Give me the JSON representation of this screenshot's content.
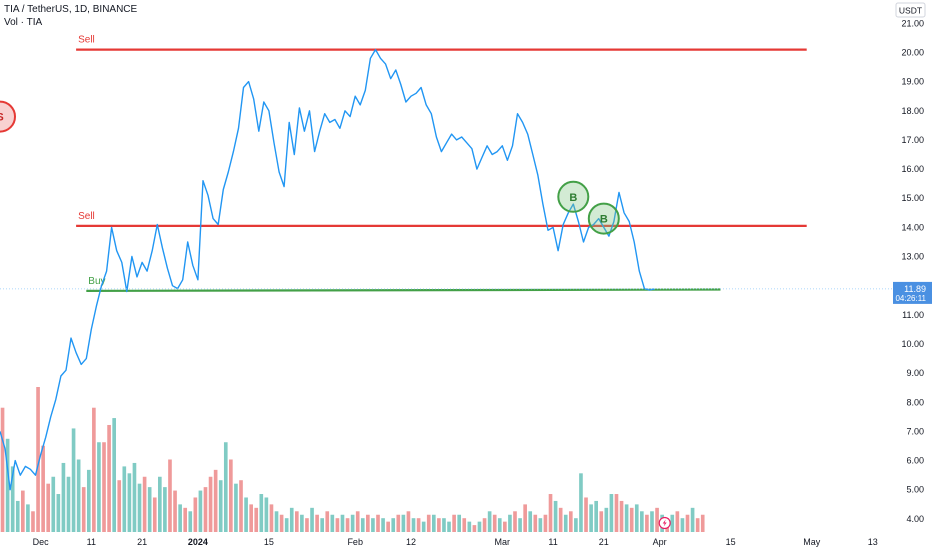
{
  "header": {
    "title": "TIA / TetherUS, 1D, BINANCE",
    "volume_label": "Vol · TIA",
    "currency": "USDT"
  },
  "last_price": {
    "price": "11.89",
    "countdown": "04:26:11"
  },
  "colors": {
    "price_line": "#2196f3",
    "sell_line": "#e53935",
    "buy_line": "#43a047",
    "vol_up": "#80cbc4",
    "vol_down": "#ef9a9a",
    "price_tag": "#4a90e2"
  },
  "chart_data": {
    "type": "line",
    "title": "TIA / TetherUS, 1D, BINANCE",
    "y_axis": {
      "ticks": [
        4,
        5,
        6,
        7,
        8,
        9,
        10,
        11,
        12,
        13,
        14,
        15,
        16,
        17,
        18,
        19,
        20,
        21
      ],
      "tick_labels": [
        "4.00",
        "5.00",
        "6.00",
        "7.00",
        "8.00",
        "9.00",
        "10.00",
        "11.00",
        "12.00",
        "13.00",
        "14.00",
        "15.00",
        "16.00",
        "17.00",
        "18.00",
        "19.00",
        "20.00",
        "21.00"
      ],
      "range": [
        3.55,
        21.8
      ]
    },
    "x_axis": {
      "tick_labels": [
        "Dec",
        "11",
        "21",
        "2024",
        "15",
        "Feb",
        "12",
        "Mar",
        "11",
        "21",
        "Apr",
        "15",
        "May",
        "13"
      ],
      "tick_dates": [
        "2023-12-01",
        "2023-12-11",
        "2023-12-21",
        "2024-01-01",
        "2024-01-15",
        "2024-02-01",
        "2024-02-12",
        "2024-03-01",
        "2024-03-11",
        "2024-03-21",
        "2024-04-01",
        "2024-04-15",
        "2024-05-01",
        "2024-05-13"
      ],
      "range": [
        "2023-11-23",
        "2024-05-17"
      ]
    },
    "price_series": {
      "name": "TIA / TetherUS",
      "points": [
        [
          "2023-11-23",
          7.0
        ],
        [
          "2023-11-24",
          6.4
        ],
        [
          "2023-11-25",
          5.0
        ],
        [
          "2023-11-26",
          6.0
        ],
        [
          "2023-11-27",
          5.5
        ],
        [
          "2023-11-28",
          5.8
        ],
        [
          "2023-11-29",
          5.7
        ],
        [
          "2023-11-30",
          5.5
        ],
        [
          "2023-12-01",
          6.2
        ],
        [
          "2023-12-02",
          6.8
        ],
        [
          "2023-12-03",
          7.5
        ],
        [
          "2023-12-04",
          8.1
        ],
        [
          "2023-12-05",
          8.9
        ],
        [
          "2023-12-06",
          9.1
        ],
        [
          "2023-12-07",
          10.2
        ],
        [
          "2023-12-08",
          9.7
        ],
        [
          "2023-12-09",
          9.3
        ],
        [
          "2023-12-10",
          9.5
        ],
        [
          "2023-12-11",
          10.5
        ],
        [
          "2023-12-12",
          11.3
        ],
        [
          "2023-12-13",
          12.0
        ],
        [
          "2023-12-14",
          12.5
        ],
        [
          "2023-12-15",
          14.0
        ],
        [
          "2023-12-16",
          13.2
        ],
        [
          "2023-12-17",
          12.8
        ],
        [
          "2023-12-18",
          11.8
        ],
        [
          "2023-12-19",
          13.0
        ],
        [
          "2023-12-20",
          12.3
        ],
        [
          "2023-12-21",
          12.8
        ],
        [
          "2023-12-22",
          12.5
        ],
        [
          "2023-12-23",
          13.2
        ],
        [
          "2023-12-24",
          14.1
        ],
        [
          "2023-12-25",
          13.3
        ],
        [
          "2023-12-26",
          12.6
        ],
        [
          "2023-12-27",
          12.0
        ],
        [
          "2023-12-28",
          11.9
        ],
        [
          "2023-12-29",
          12.2
        ],
        [
          "2023-12-30",
          13.5
        ],
        [
          "2023-12-31",
          12.7
        ],
        [
          "2024-01-01",
          12.2
        ],
        [
          "2024-01-02",
          15.6
        ],
        [
          "2024-01-03",
          15.1
        ],
        [
          "2024-01-04",
          14.3
        ],
        [
          "2024-01-05",
          14.1
        ],
        [
          "2024-01-06",
          15.3
        ],
        [
          "2024-01-07",
          15.9
        ],
        [
          "2024-01-08",
          16.6
        ],
        [
          "2024-01-09",
          17.4
        ],
        [
          "2024-01-10",
          18.8
        ],
        [
          "2024-01-11",
          19.0
        ],
        [
          "2024-01-12",
          18.4
        ],
        [
          "2024-01-13",
          17.3
        ],
        [
          "2024-01-14",
          18.3
        ],
        [
          "2024-01-15",
          18.0
        ],
        [
          "2024-01-16",
          16.9
        ],
        [
          "2024-01-17",
          15.9
        ],
        [
          "2024-01-18",
          15.4
        ],
        [
          "2024-01-19",
          17.6
        ],
        [
          "2024-01-20",
          16.5
        ],
        [
          "2024-01-21",
          18.1
        ],
        [
          "2024-01-22",
          17.3
        ],
        [
          "2024-01-23",
          18.0
        ],
        [
          "2024-01-24",
          16.6
        ],
        [
          "2024-01-25",
          17.3
        ],
        [
          "2024-01-26",
          17.9
        ],
        [
          "2024-01-27",
          17.6
        ],
        [
          "2024-01-28",
          17.7
        ],
        [
          "2024-01-29",
          17.4
        ],
        [
          "2024-01-30",
          18.0
        ],
        [
          "2024-01-31",
          17.8
        ],
        [
          "2024-02-01",
          18.5
        ],
        [
          "2024-02-02",
          18.2
        ],
        [
          "2024-02-03",
          18.7
        ],
        [
          "2024-02-04",
          19.8
        ],
        [
          "2024-02-05",
          20.1
        ],
        [
          "2024-02-06",
          19.8
        ],
        [
          "2024-02-07",
          19.6
        ],
        [
          "2024-02-08",
          19.1
        ],
        [
          "2024-02-09",
          19.4
        ],
        [
          "2024-02-10",
          18.9
        ],
        [
          "2024-02-11",
          18.3
        ],
        [
          "2024-02-12",
          18.5
        ],
        [
          "2024-02-13",
          18.6
        ],
        [
          "2024-02-14",
          18.8
        ],
        [
          "2024-02-15",
          18.2
        ],
        [
          "2024-02-16",
          17.9
        ],
        [
          "2024-02-17",
          17.1
        ],
        [
          "2024-02-18",
          16.6
        ],
        [
          "2024-02-19",
          16.9
        ],
        [
          "2024-02-20",
          17.2
        ],
        [
          "2024-02-21",
          17.0
        ],
        [
          "2024-02-22",
          17.1
        ],
        [
          "2024-02-23",
          16.9
        ],
        [
          "2024-02-24",
          16.7
        ],
        [
          "2024-02-25",
          16.0
        ],
        [
          "2024-02-26",
          16.4
        ],
        [
          "2024-02-27",
          16.8
        ],
        [
          "2024-02-28",
          16.5
        ],
        [
          "2024-02-29",
          16.6
        ],
        [
          "2024-03-01",
          16.8
        ],
        [
          "2024-03-02",
          16.3
        ],
        [
          "2024-03-03",
          16.8
        ],
        [
          "2024-03-04",
          17.9
        ],
        [
          "2024-03-05",
          17.6
        ],
        [
          "2024-03-06",
          17.2
        ],
        [
          "2024-03-07",
          16.5
        ],
        [
          "2024-03-08",
          15.8
        ],
        [
          "2024-03-09",
          14.8
        ],
        [
          "2024-03-10",
          13.9
        ],
        [
          "2024-03-11",
          14.0
        ],
        [
          "2024-03-12",
          13.2
        ],
        [
          "2024-03-13",
          14.1
        ],
        [
          "2024-03-14",
          14.5
        ],
        [
          "2024-03-15",
          14.8
        ],
        [
          "2024-03-16",
          14.2
        ],
        [
          "2024-03-17",
          13.5
        ],
        [
          "2024-03-18",
          14.0
        ],
        [
          "2024-03-19",
          14.1
        ],
        [
          "2024-03-20",
          14.3
        ],
        [
          "2024-03-21",
          14.0
        ],
        [
          "2024-03-22",
          13.7
        ],
        [
          "2024-03-23",
          14.2
        ],
        [
          "2024-03-24",
          15.2
        ],
        [
          "2024-03-25",
          14.5
        ],
        [
          "2024-03-26",
          14.2
        ],
        [
          "2024-03-27",
          13.5
        ],
        [
          "2024-03-28",
          12.5
        ],
        [
          "2024-03-29",
          11.9
        ],
        [
          "2024-03-30",
          11.85
        ],
        [
          "2024-03-31",
          11.89
        ]
      ]
    },
    "volume_series": {
      "name": "Vol · TIA",
      "bars": [
        [
          3.6,
          "down"
        ],
        [
          2.7,
          "up"
        ],
        [
          1.9,
          "up"
        ],
        [
          0.9,
          "up"
        ],
        [
          1.2,
          "down"
        ],
        [
          0.8,
          "up"
        ],
        [
          0.6,
          "down"
        ],
        [
          4.2,
          "down"
        ],
        [
          2.5,
          "down"
        ],
        [
          1.4,
          "down"
        ],
        [
          1.6,
          "up"
        ],
        [
          1.1,
          "up"
        ],
        [
          2.0,
          "up"
        ],
        [
          1.6,
          "up"
        ],
        [
          3.0,
          "up"
        ],
        [
          2.1,
          "up"
        ],
        [
          1.3,
          "down"
        ],
        [
          1.8,
          "up"
        ],
        [
          3.6,
          "down"
        ],
        [
          2.6,
          "up"
        ],
        [
          2.6,
          "down"
        ],
        [
          3.1,
          "down"
        ],
        [
          3.3,
          "up"
        ],
        [
          1.5,
          "down"
        ],
        [
          1.9,
          "up"
        ],
        [
          1.7,
          "up"
        ],
        [
          2.0,
          "up"
        ],
        [
          1.4,
          "up"
        ],
        [
          1.6,
          "down"
        ],
        [
          1.3,
          "up"
        ],
        [
          1.0,
          "down"
        ],
        [
          1.6,
          "up"
        ],
        [
          1.3,
          "up"
        ],
        [
          2.1,
          "down"
        ],
        [
          1.2,
          "down"
        ],
        [
          0.8,
          "up"
        ],
        [
          0.7,
          "down"
        ],
        [
          0.6,
          "up"
        ],
        [
          1.0,
          "down"
        ],
        [
          1.2,
          "up"
        ],
        [
          1.3,
          "down"
        ],
        [
          1.6,
          "down"
        ],
        [
          1.8,
          "down"
        ],
        [
          1.5,
          "up"
        ],
        [
          2.6,
          "up"
        ],
        [
          2.1,
          "down"
        ],
        [
          1.4,
          "up"
        ],
        [
          1.5,
          "down"
        ],
        [
          1.0,
          "up"
        ],
        [
          0.8,
          "down"
        ],
        [
          0.7,
          "down"
        ],
        [
          1.1,
          "up"
        ],
        [
          1.0,
          "up"
        ],
        [
          0.8,
          "down"
        ],
        [
          0.6,
          "up"
        ],
        [
          0.5,
          "down"
        ],
        [
          0.4,
          "up"
        ],
        [
          0.7,
          "up"
        ],
        [
          0.6,
          "down"
        ],
        [
          0.5,
          "up"
        ],
        [
          0.4,
          "down"
        ],
        [
          0.7,
          "up"
        ],
        [
          0.5,
          "down"
        ],
        [
          0.4,
          "up"
        ],
        [
          0.6,
          "down"
        ],
        [
          0.5,
          "up"
        ],
        [
          0.4,
          "down"
        ],
        [
          0.5,
          "up"
        ],
        [
          0.4,
          "down"
        ],
        [
          0.5,
          "up"
        ],
        [
          0.6,
          "down"
        ],
        [
          0.4,
          "up"
        ],
        [
          0.5,
          "down"
        ],
        [
          0.4,
          "up"
        ],
        [
          0.5,
          "down"
        ],
        [
          0.4,
          "up"
        ],
        [
          0.3,
          "down"
        ],
        [
          0.4,
          "up"
        ],
        [
          0.5,
          "down"
        ],
        [
          0.5,
          "up"
        ],
        [
          0.6,
          "down"
        ],
        [
          0.4,
          "up"
        ],
        [
          0.4,
          "down"
        ],
        [
          0.3,
          "up"
        ],
        [
          0.5,
          "down"
        ],
        [
          0.5,
          "up"
        ],
        [
          0.4,
          "down"
        ],
        [
          0.4,
          "up"
        ],
        [
          0.3,
          "up"
        ],
        [
          0.5,
          "down"
        ],
        [
          0.5,
          "up"
        ],
        [
          0.4,
          "down"
        ],
        [
          0.3,
          "up"
        ],
        [
          0.2,
          "down"
        ],
        [
          0.3,
          "up"
        ],
        [
          0.4,
          "down"
        ],
        [
          0.6,
          "up"
        ],
        [
          0.5,
          "down"
        ],
        [
          0.4,
          "up"
        ],
        [
          0.3,
          "down"
        ],
        [
          0.5,
          "up"
        ],
        [
          0.6,
          "down"
        ],
        [
          0.4,
          "up"
        ],
        [
          0.8,
          "down"
        ],
        [
          0.6,
          "up"
        ],
        [
          0.5,
          "down"
        ],
        [
          0.4,
          "up"
        ],
        [
          0.5,
          "down"
        ],
        [
          1.1,
          "down"
        ],
        [
          0.9,
          "up"
        ],
        [
          0.7,
          "down"
        ],
        [
          0.5,
          "up"
        ],
        [
          0.6,
          "down"
        ],
        [
          0.4,
          "up"
        ],
        [
          1.7,
          "up"
        ],
        [
          1.0,
          "down"
        ],
        [
          0.8,
          "up"
        ],
        [
          0.9,
          "up"
        ],
        [
          0.6,
          "down"
        ],
        [
          0.7,
          "up"
        ],
        [
          1.1,
          "up"
        ],
        [
          1.1,
          "down"
        ],
        [
          0.9,
          "down"
        ],
        [
          0.8,
          "up"
        ],
        [
          0.7,
          "down"
        ],
        [
          0.8,
          "up"
        ],
        [
          0.6,
          "up"
        ],
        [
          0.5,
          "down"
        ],
        [
          0.6,
          "up"
        ],
        [
          0.7,
          "down"
        ],
        [
          0.5,
          "up"
        ],
        [
          0.4,
          "down"
        ],
        [
          0.5,
          "up"
        ],
        [
          0.6,
          "down"
        ],
        [
          0.4,
          "up"
        ],
        [
          0.5,
          "down"
        ],
        [
          0.7,
          "up"
        ],
        [
          0.4,
          "down"
        ],
        [
          0.5,
          "down"
        ]
      ]
    },
    "levels": [
      {
        "label": "Sell",
        "price": 20.1,
        "from": "2023-12-08",
        "to": "2024-04-30",
        "color": "#e53935",
        "width": 2.2
      },
      {
        "label": "Sell",
        "price": 14.05,
        "from": "2023-12-08",
        "to": "2024-04-30",
        "color": "#e53935",
        "width": 2.2
      },
      {
        "label": "Buy",
        "price": 11.82,
        "from": "2023-12-10",
        "to": "2024-04-13",
        "price_end": 11.87,
        "color": "#43a047",
        "width": 2.2
      }
    ],
    "markers": [
      {
        "label": "S",
        "date": "2023-11-23",
        "price": 17.8,
        "kind": "sell"
      },
      {
        "label": "B",
        "date": "2024-03-15",
        "price": 15.05,
        "kind": "buy"
      },
      {
        "label": "B",
        "date": "2024-03-21",
        "price": 14.3,
        "kind": "buy"
      }
    ]
  }
}
